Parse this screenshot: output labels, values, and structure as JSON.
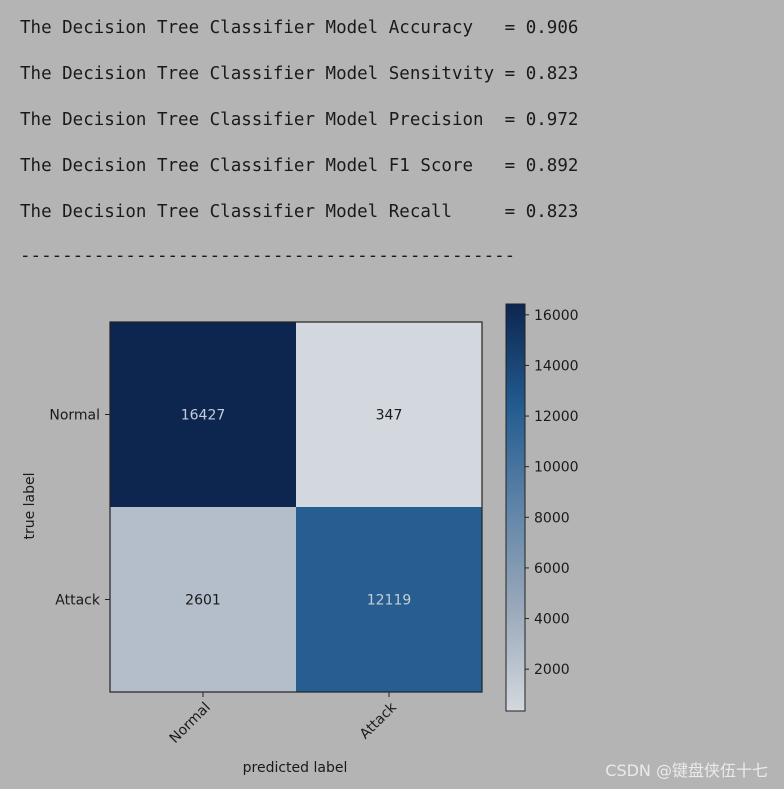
{
  "metrics": [
    "The Decision Tree Classifier Model Accuracy   = 0.906",
    "The Decision Tree Classifier Model Sensitvity = 0.823",
    "The Decision Tree Classifier Model Precision  = 0.972",
    "The Decision Tree Classifier Model F1 Score   = 0.892",
    "The Decision Tree Classifier Model Recall     = 0.823"
  ],
  "divider": "-----------------------------------------------",
  "chart_data": {
    "type": "heatmap",
    "title": "",
    "xlabel": "predicted label",
    "ylabel": "true label",
    "x_categories": [
      "Normal",
      "Attack"
    ],
    "y_categories": [
      "Normal",
      "Attack"
    ],
    "values": [
      [
        16427,
        347
      ],
      [
        2601,
        12119
      ]
    ],
    "colorbar": {
      "min": 347,
      "max": 16427,
      "ticks": [
        2000,
        4000,
        6000,
        8000,
        10000,
        12000,
        14000,
        16000
      ]
    },
    "colors": {
      "low": "#d3d8de",
      "high": "#0c2650",
      "text_light": "#c8cdd4",
      "text_dark": "#1a1a1a"
    }
  },
  "watermark": "CSDN @键盘侠伍十七"
}
